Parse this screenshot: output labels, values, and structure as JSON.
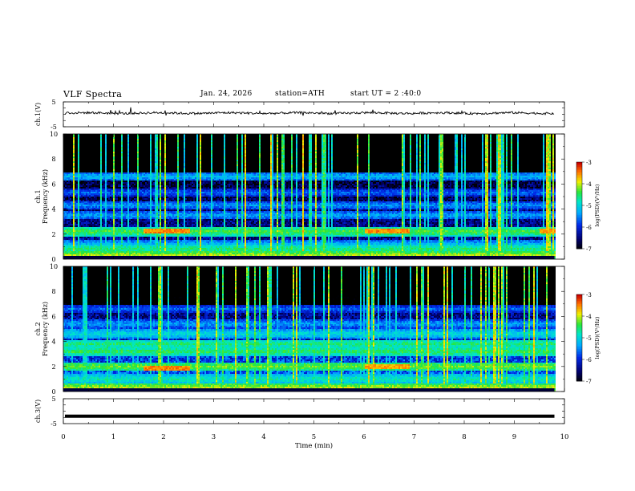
{
  "header": {
    "title": "VLF Spectra",
    "date": "Jan. 24, 2026",
    "station": "station=ATH",
    "start_ut": "start UT = 2 :40:0"
  },
  "chart_data": [
    {
      "type": "line",
      "name": "ch1-waveform",
      "ylabel": "ch.1(V)",
      "ylim": [
        -5,
        5
      ],
      "yticks": [
        "5",
        "-5"
      ],
      "xlim": [
        0,
        10
      ],
      "baseline_v": 0.5
    },
    {
      "type": "heatmap",
      "name": "ch1-spectrogram",
      "ylabel": "ch.1\nFrequency (kHz)",
      "ylim_khz": [
        0,
        10
      ],
      "yticks": [
        "0",
        "2",
        "4",
        "6",
        "8",
        "10"
      ],
      "xlim_min": [
        0,
        10
      ],
      "data_end_min": 9.8,
      "colorbar": {
        "label": "log(PSD)(V²/Hz)",
        "range": [
          -7,
          -3
        ],
        "ticks": [
          "-3",
          "-4",
          "-5",
          "-6",
          "-7"
        ]
      },
      "bands_khz": [
        {
          "f": 0.3,
          "level": -4.0
        },
        {
          "f": 0.8,
          "level": -4.5
        },
        {
          "f": 1.2,
          "level": -5.2
        },
        {
          "f": 2.2,
          "level": -4.3
        },
        {
          "f": 3.5,
          "level": -5.3
        },
        {
          "f": 4.3,
          "level": -5.4
        },
        {
          "f": 5.3,
          "level": -5.6
        },
        {
          "f": 6.6,
          "level": -5.2
        }
      ],
      "bursts_min": [
        {
          "start": 1.6,
          "end": 2.5,
          "f": 2.2,
          "level": -3.5
        },
        {
          "start": 6.0,
          "end": 6.9,
          "f": 2.2,
          "level": -3.5
        },
        {
          "start": 9.5,
          "end": 9.8,
          "f": 2.2,
          "level": -3.6
        }
      ]
    },
    {
      "type": "heatmap",
      "name": "ch2-spectrogram",
      "ylabel": "ch.2\nFrequency (kHz)",
      "ylim_khz": [
        0,
        10
      ],
      "yticks": [
        "0",
        "2",
        "4",
        "6",
        "8",
        "10"
      ],
      "xlim_min": [
        0,
        10
      ],
      "data_end_min": 9.8,
      "colorbar": {
        "label": "log(PSD)(V²/Hz)",
        "range": [
          -7,
          -3
        ],
        "ticks": [
          "-3",
          "-4",
          "-5",
          "-6",
          "-7"
        ]
      },
      "bands_khz": [
        {
          "f": 0.3,
          "level": -4.0
        },
        {
          "f": 1.0,
          "level": -4.7
        },
        {
          "f": 2.0,
          "level": -4.2
        },
        {
          "f": 3.2,
          "level": -4.4
        },
        {
          "f": 3.8,
          "level": -4.5
        },
        {
          "f": 4.6,
          "level": -4.9
        },
        {
          "f": 5.4,
          "level": -5.3
        },
        {
          "f": 6.6,
          "level": -5.6
        }
      ],
      "bursts_min": [
        {
          "start": 1.6,
          "end": 2.5,
          "f": 1.9,
          "level": -3.5
        },
        {
          "start": 6.0,
          "end": 6.9,
          "f": 2.0,
          "level": -3.6
        }
      ]
    },
    {
      "type": "line",
      "name": "ch3-waveform",
      "ylabel": "ch.3(V)",
      "ylim": [
        -5,
        5
      ],
      "yticks": [
        "5",
        "-5"
      ],
      "xlim": [
        0,
        10
      ],
      "baseline_v": -2.0,
      "xlabel": "Time (min)",
      "xticks": [
        "0",
        "1",
        "2",
        "3",
        "4",
        "5",
        "6",
        "7",
        "8",
        "9",
        "10"
      ]
    }
  ]
}
